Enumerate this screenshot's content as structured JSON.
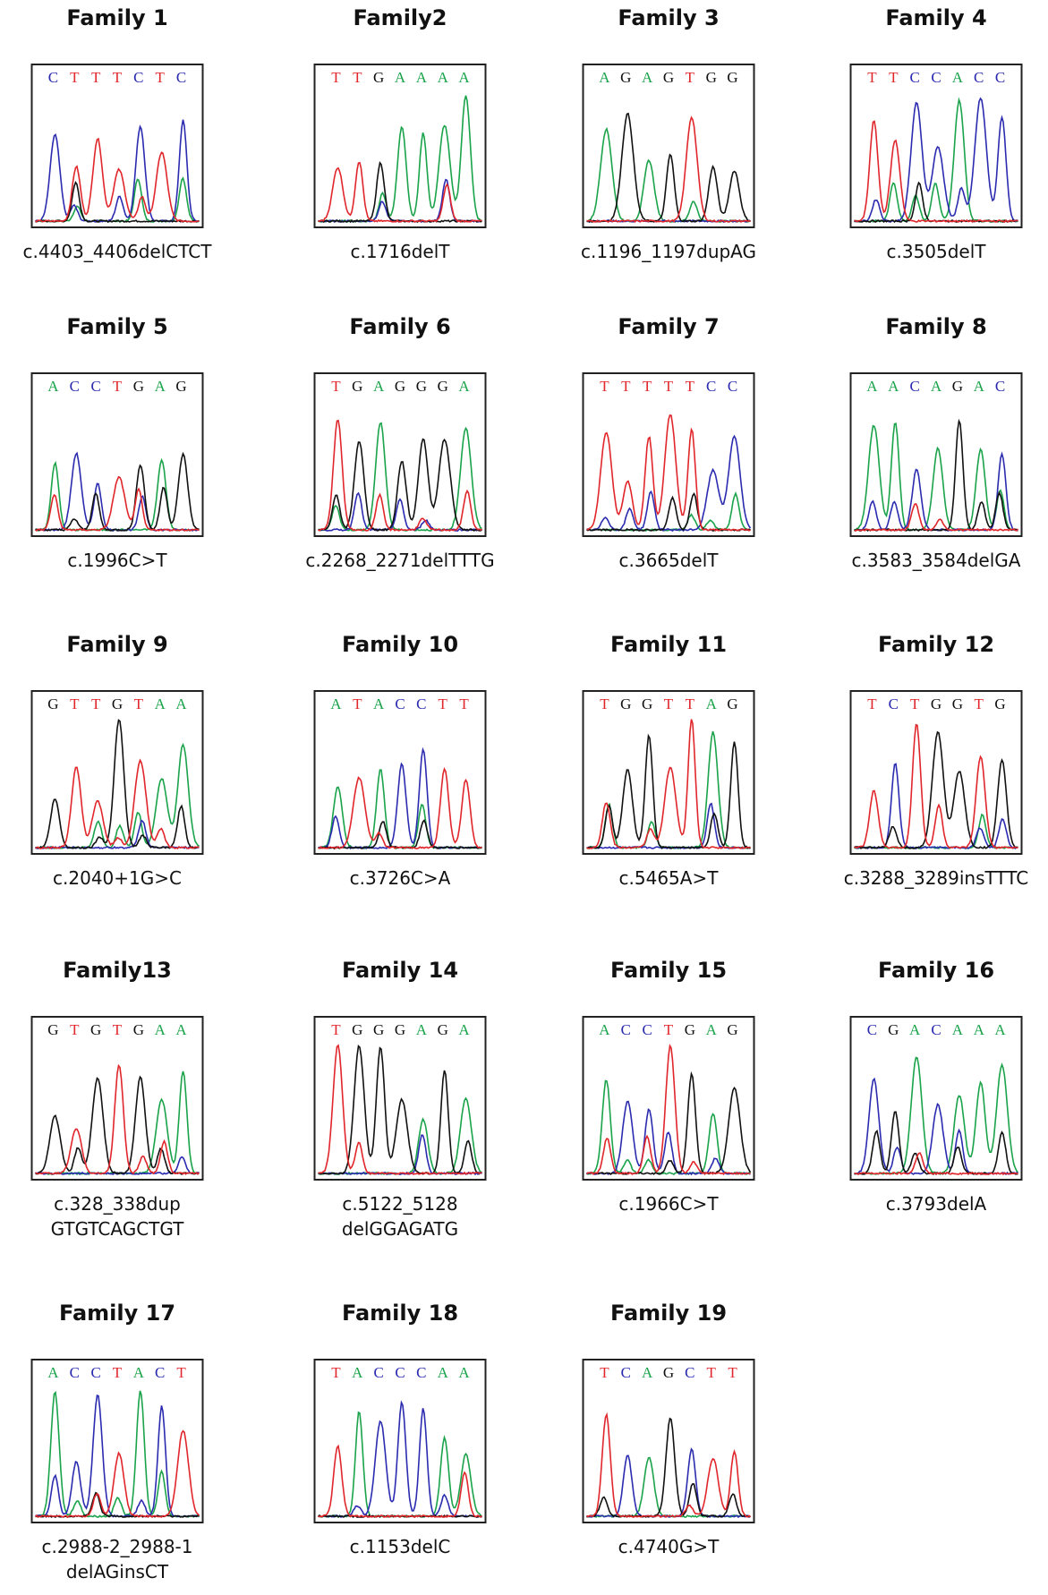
{
  "panels": [
    {
      "title": "Family 1",
      "bases": [
        "C",
        "T",
        "T",
        "T",
        "C",
        "T",
        "C"
      ],
      "label": [
        "c.4403_4406delCTCT"
      ]
    },
    {
      "title": "Family2",
      "bases": [
        "T",
        "T",
        "G",
        "A",
        "A",
        "A",
        "A"
      ],
      "label": [
        "c.1716delT"
      ]
    },
    {
      "title": "Family 3",
      "bases": [
        "A",
        "G",
        "A",
        "G",
        "T",
        "G",
        "G"
      ],
      "label": [
        "c.1196_1197dupAG"
      ]
    },
    {
      "title": "Family 4",
      "bases": [
        "T",
        "T",
        "C",
        "C",
        "A",
        "C",
        "C"
      ],
      "label": [
        "c.3505delT"
      ]
    },
    {
      "title": "Family 5",
      "bases": [
        "A",
        "C",
        "C",
        "T",
        "G",
        "A",
        "G"
      ],
      "label": [
        "c.1996C>T"
      ]
    },
    {
      "title": "Family 6",
      "bases": [
        "T",
        "G",
        "A",
        "G",
        "G",
        "G",
        "A"
      ],
      "label": [
        "c.2268_2271delTTTG"
      ]
    },
    {
      "title": "Family 7",
      "bases": [
        "T",
        "T",
        "T",
        "T",
        "T",
        "C",
        "C"
      ],
      "label": [
        "c.3665delT"
      ]
    },
    {
      "title": "Family 8",
      "bases": [
        "A",
        "A",
        "C",
        "A",
        "G",
        "A",
        "C"
      ],
      "label": [
        "c.3583_3584delGA"
      ]
    },
    {
      "title": "Family 9",
      "bases": [
        "G",
        "T",
        "T",
        "G",
        "T",
        "A",
        "A"
      ],
      "label": [
        "c.2040+1G>C"
      ]
    },
    {
      "title": "Family 10",
      "bases": [
        "A",
        "T",
        "A",
        "C",
        "C",
        "T",
        "T"
      ],
      "label": [
        "c.3726C>A"
      ]
    },
    {
      "title": "Family 11",
      "bases": [
        "T",
        "G",
        "G",
        "T",
        "T",
        "A",
        "G"
      ],
      "label": [
        "c.5465A>T"
      ]
    },
    {
      "title": "Family 12",
      "bases": [
        "T",
        "C",
        "T",
        "G",
        "G",
        "T",
        "G"
      ],
      "label": [
        "c.3288_3289insTTTC"
      ]
    },
    {
      "title": "Family13",
      "bases": [
        "G",
        "T",
        "G",
        "T",
        "G",
        "A",
        "A"
      ],
      "label": [
        "c.328_338dup",
        "GTGTCAGCTGT"
      ]
    },
    {
      "title": "Family 14",
      "bases": [
        "T",
        "G",
        "G",
        "G",
        "A",
        "G",
        "A"
      ],
      "label": [
        "c.5122_5128",
        "delGGAGATG"
      ]
    },
    {
      "title": "Family 15",
      "bases": [
        "A",
        "C",
        "C",
        "T",
        "G",
        "A",
        "G"
      ],
      "label": [
        "c.1966C>T"
      ]
    },
    {
      "title": "Family 16",
      "bases": [
        "C",
        "G",
        "A",
        "C",
        "A",
        "A",
        "A"
      ],
      "label": [
        "c.3793delA"
      ]
    },
    {
      "title": "Family 17",
      "bases": [
        "A",
        "C",
        "C",
        "T",
        "A",
        "C",
        "T"
      ],
      "label": [
        "c.2988-2_2988-1",
        "delAGinsCT"
      ]
    },
    {
      "title": "Family 18",
      "bases": [
        "T",
        "A",
        "C",
        "C",
        "C",
        "A",
        "A"
      ],
      "label": [
        "c.1153delC"
      ]
    },
    {
      "title": "Family 19",
      "bases": [
        "T",
        "C",
        "A",
        "G",
        "C",
        "T",
        "T"
      ],
      "label": [
        "c.4740G>T"
      ]
    }
  ]
}
